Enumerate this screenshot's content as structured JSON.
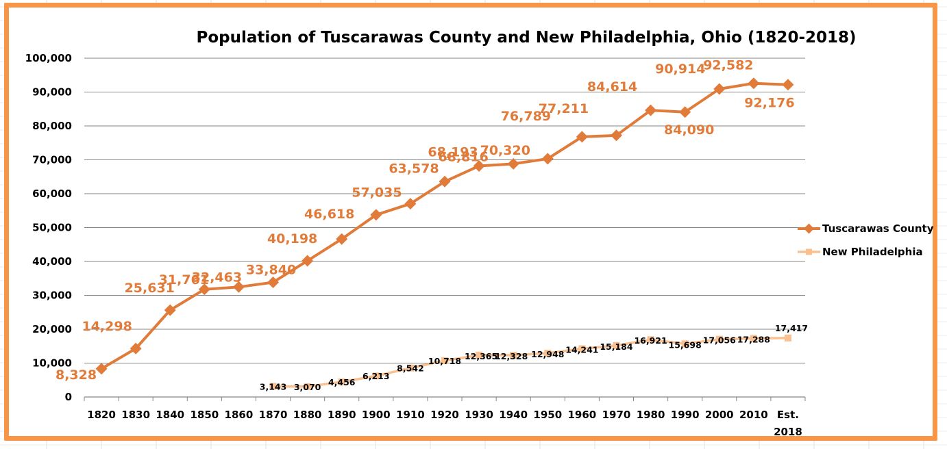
{
  "chart_data": {
    "type": "line",
    "title": "Population of Tuscarawas County and New Philadelphia, Ohio (1820-2018)",
    "xlabel": "",
    "ylabel": "",
    "ylim": [
      0,
      100000
    ],
    "grid": true,
    "legend_position": "right",
    "categories": [
      "1820",
      "1830",
      "1840",
      "1850",
      "1860",
      "1870",
      "1880",
      "1890",
      "1900",
      "1910",
      "1920",
      "1930",
      "1940",
      "1950",
      "1960",
      "1970",
      "1980",
      "1990",
      "2000",
      "2010",
      "Est. 2018"
    ],
    "ytick_labels": [
      "0",
      "10,000",
      "20,000",
      "30,000",
      "40,000",
      "50,000",
      "60,000",
      "70,000",
      "80,000",
      "90,000",
      "100,000"
    ],
    "series": [
      {
        "name": "Tuscarawas County",
        "color": "#e07b39",
        "label_color": "#e07b39",
        "marker": "diamond",
        "values": [
          8328,
          14298,
          25631,
          31761,
          32463,
          33840,
          40198,
          46618,
          53751,
          57035,
          63578,
          68193,
          68816,
          70320,
          76789,
          77211,
          84614,
          84090,
          90914,
          92582,
          92176
        ],
        "data_labels": [
          "8,328",
          "14,298",
          "25,631",
          "31,761",
          "32,463",
          "33,840",
          "40,198",
          "46,618",
          "",
          "57,035",
          "63,578",
          "68,193",
          "68,816",
          "70,320",
          "76,789",
          "77,211",
          "84,614",
          "84,090",
          "90,914",
          "92,582",
          "92,176"
        ]
      },
      {
        "name": "New Philadelphia",
        "color": "#fac090",
        "label_color": "#000000",
        "marker": "square",
        "values": [
          null,
          null,
          null,
          null,
          null,
          3143,
          3070,
          4456,
          6213,
          8542,
          10718,
          12365,
          12328,
          12948,
          14241,
          15184,
          16921,
          15698,
          17056,
          17288,
          17417
        ],
        "data_labels": [
          "",
          "",
          "",
          "",
          "",
          "3,143",
          "3,070",
          "4,456",
          "6,213",
          "8,542",
          "10,718",
          "12,365",
          "12,328",
          "12,948",
          "14,241",
          "15,184",
          "16,921",
          "15,698",
          "17,056",
          "17,288",
          "17,417"
        ]
      }
    ]
  }
}
